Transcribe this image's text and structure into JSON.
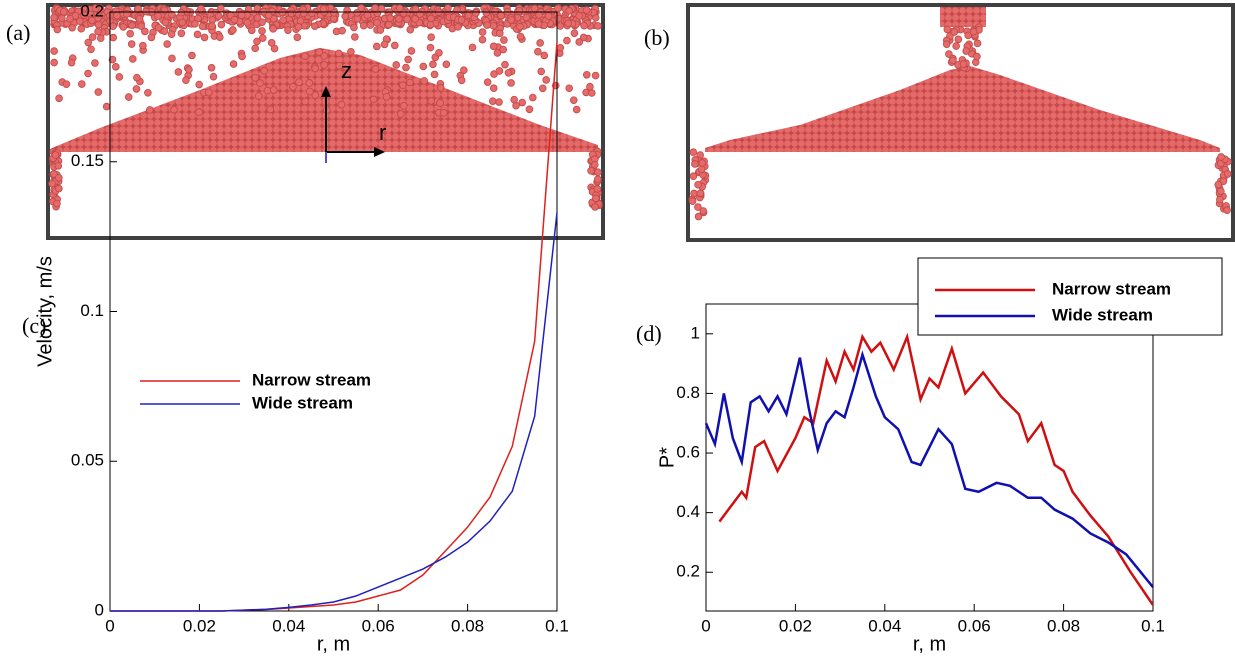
{
  "panels": {
    "a": "(a)",
    "b": "(b)",
    "c": "(c)",
    "d": "(d)"
  },
  "figure_a": {
    "z_axis": "z",
    "r_axis": "r"
  },
  "chart_data": [
    {
      "type": "line",
      "xlabel": "r, m",
      "ylabel": "Velocity, m/s",
      "xlim": [
        0,
        0.1
      ],
      "ylim": [
        0,
        0.2
      ],
      "xticks": [
        0,
        0.02,
        0.04,
        0.06,
        0.08,
        0.1
      ],
      "yticks": [
        0,
        0.05,
        0.1,
        0.15,
        0.2
      ],
      "x": [
        0,
        0.005,
        0.01,
        0.015,
        0.02,
        0.025,
        0.03,
        0.035,
        0.04,
        0.045,
        0.05,
        0.055,
        0.06,
        0.065,
        0.07,
        0.075,
        0.08,
        0.085,
        0.09,
        0.095,
        0.1
      ],
      "series": [
        {
          "name": "Narrow stream",
          "color": "#e0201b",
          "values": [
            0,
            0,
            0,
            0,
            0,
            0,
            0.0003,
            0.0005,
            0.001,
            0.0015,
            0.002,
            0.003,
            0.005,
            0.007,
            0.012,
            0.02,
            0.028,
            0.038,
            0.055,
            0.09,
            0.19
          ]
        },
        {
          "name": "Wide stream",
          "color": "#2020c0",
          "values": [
            0,
            0,
            0,
            0,
            0,
            0,
            0.0003,
            0.0006,
            0.0012,
            0.002,
            0.003,
            0.005,
            0.008,
            0.011,
            0.014,
            0.018,
            0.023,
            0.03,
            0.04,
            0.065,
            0.133
          ]
        }
      ]
    },
    {
      "type": "line",
      "xlabel": "r, m",
      "ylabel": "P*",
      "xlim": [
        0,
        0.1
      ],
      "ylim": [
        0.07,
        1.1
      ],
      "xticks": [
        0,
        0.02,
        0.04,
        0.06,
        0.08,
        0.1
      ],
      "yticks": [
        0.2,
        0.4,
        0.6,
        0.8,
        1
      ],
      "series": [
        {
          "name": "Narrow stream",
          "color": "#d01010",
          "x": [
            0.003,
            0.008,
            0.009,
            0.011,
            0.013,
            0.016,
            0.02,
            0.022,
            0.024,
            0.027,
            0.029,
            0.031,
            0.033,
            0.035,
            0.037,
            0.039,
            0.042,
            0.045,
            0.048,
            0.05,
            0.052,
            0.055,
            0.058,
            0.062,
            0.066,
            0.07,
            0.072,
            0.075,
            0.078,
            0.08,
            0.082,
            0.086,
            0.09,
            0.095,
            0.1
          ],
          "values": [
            0.37,
            0.47,
            0.45,
            0.62,
            0.64,
            0.54,
            0.65,
            0.72,
            0.7,
            0.91,
            0.84,
            0.94,
            0.88,
            0.99,
            0.94,
            0.97,
            0.88,
            0.99,
            0.78,
            0.85,
            0.82,
            0.95,
            0.8,
            0.87,
            0.79,
            0.73,
            0.64,
            0.7,
            0.56,
            0.54,
            0.47,
            0.39,
            0.32,
            0.2,
            0.09
          ]
        },
        {
          "name": "Wide stream",
          "color": "#1010b0",
          "x": [
            0,
            0.002,
            0.004,
            0.006,
            0.008,
            0.01,
            0.012,
            0.014,
            0.016,
            0.018,
            0.021,
            0.023,
            0.025,
            0.027,
            0.029,
            0.031,
            0.033,
            0.035,
            0.038,
            0.04,
            0.043,
            0.046,
            0.048,
            0.052,
            0.055,
            0.058,
            0.061,
            0.065,
            0.068,
            0.072,
            0.075,
            0.078,
            0.082,
            0.086,
            0.09,
            0.094,
            0.1
          ],
          "values": [
            0.7,
            0.63,
            0.8,
            0.65,
            0.57,
            0.77,
            0.79,
            0.74,
            0.79,
            0.73,
            0.92,
            0.75,
            0.61,
            0.7,
            0.74,
            0.72,
            0.82,
            0.93,
            0.79,
            0.72,
            0.68,
            0.57,
            0.56,
            0.68,
            0.63,
            0.48,
            0.47,
            0.5,
            0.49,
            0.45,
            0.45,
            0.41,
            0.38,
            0.33,
            0.3,
            0.26,
            0.15
          ]
        }
      ]
    }
  ]
}
